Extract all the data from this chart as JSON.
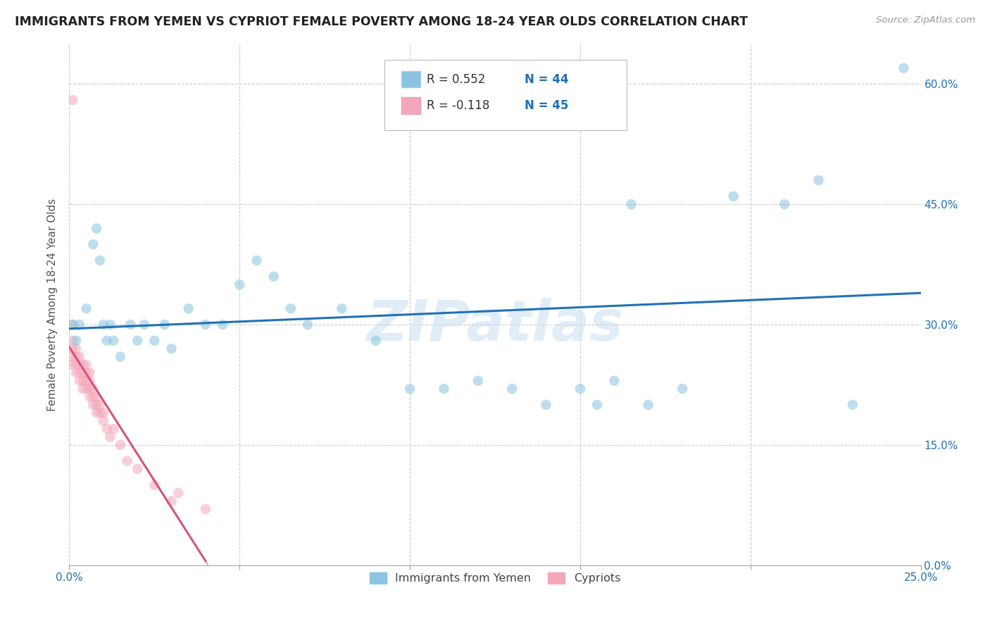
{
  "title": "IMMIGRANTS FROM YEMEN VS CYPRIOT FEMALE POVERTY AMONG 18-24 YEAR OLDS CORRELATION CHART",
  "source": "Source: ZipAtlas.com",
  "ylabel": "Female Poverty Among 18-24 Year Olds",
  "xlim": [
    0.0,
    0.25
  ],
  "ylim": [
    0.0,
    0.65
  ],
  "xticks": [
    0.0,
    0.05,
    0.1,
    0.15,
    0.2,
    0.25
  ],
  "xtick_labels": [
    "0.0%",
    "",
    "",
    "",
    "",
    "25.0%"
  ],
  "yticks": [
    0.0,
    0.15,
    0.3,
    0.45,
    0.6
  ],
  "ytick_labels_right": [
    "0.0%",
    "15.0%",
    "30.0%",
    "45.0%",
    "60.0%"
  ],
  "blue_color": "#89c4e1",
  "pink_color": "#f4a7b9",
  "blue_edge_color": "#5aadd4",
  "pink_edge_color": "#e87fa0",
  "blue_line_color": "#2171b5",
  "pink_line_color": "#d4547a",
  "pink_dash_color": "#f0a0b8",
  "watermark": "ZIPatlas",
  "legend_R_blue": "R = 0.552",
  "legend_N_blue": "N = 44",
  "legend_R_pink": "R = -0.118",
  "legend_N_pink": "N = 45",
  "legend_label_blue": "Immigrants from Yemen",
  "legend_label_pink": "Cypriots",
  "blue_scatter_x": [
    0.001,
    0.002,
    0.003,
    0.005,
    0.007,
    0.008,
    0.009,
    0.01,
    0.011,
    0.012,
    0.013,
    0.015,
    0.018,
    0.02,
    0.022,
    0.025,
    0.028,
    0.03,
    0.035,
    0.04,
    0.045,
    0.05,
    0.055,
    0.06,
    0.065,
    0.07,
    0.08,
    0.09,
    0.1,
    0.11,
    0.12,
    0.13,
    0.14,
    0.15,
    0.155,
    0.16,
    0.165,
    0.17,
    0.18,
    0.195,
    0.21,
    0.22,
    0.23,
    0.245
  ],
  "blue_scatter_y": [
    0.3,
    0.28,
    0.3,
    0.32,
    0.4,
    0.42,
    0.38,
    0.3,
    0.28,
    0.3,
    0.28,
    0.26,
    0.3,
    0.28,
    0.3,
    0.28,
    0.3,
    0.27,
    0.32,
    0.3,
    0.3,
    0.35,
    0.38,
    0.36,
    0.32,
    0.3,
    0.32,
    0.28,
    0.22,
    0.22,
    0.23,
    0.22,
    0.2,
    0.22,
    0.2,
    0.23,
    0.45,
    0.2,
    0.22,
    0.46,
    0.45,
    0.48,
    0.2,
    0.62
  ],
  "pink_scatter_x": [
    0.0005,
    0.001,
    0.001,
    0.001,
    0.001,
    0.002,
    0.002,
    0.002,
    0.002,
    0.003,
    0.003,
    0.003,
    0.003,
    0.004,
    0.004,
    0.004,
    0.004,
    0.005,
    0.005,
    0.005,
    0.005,
    0.006,
    0.006,
    0.006,
    0.006,
    0.007,
    0.007,
    0.007,
    0.008,
    0.008,
    0.008,
    0.009,
    0.009,
    0.01,
    0.01,
    0.011,
    0.012,
    0.013,
    0.015,
    0.017,
    0.02,
    0.025,
    0.03,
    0.032,
    0.04
  ],
  "pink_scatter_y": [
    0.25,
    0.26,
    0.27,
    0.28,
    0.3,
    0.24,
    0.25,
    0.26,
    0.27,
    0.23,
    0.24,
    0.25,
    0.26,
    0.22,
    0.23,
    0.24,
    0.25,
    0.22,
    0.23,
    0.24,
    0.25,
    0.21,
    0.22,
    0.23,
    0.24,
    0.2,
    0.21,
    0.22,
    0.19,
    0.2,
    0.21,
    0.19,
    0.2,
    0.18,
    0.19,
    0.17,
    0.16,
    0.17,
    0.15,
    0.13,
    0.12,
    0.1,
    0.08,
    0.09,
    0.07
  ],
  "pink_outlier_x": [
    0.001
  ],
  "pink_outlier_y": [
    0.58
  ]
}
